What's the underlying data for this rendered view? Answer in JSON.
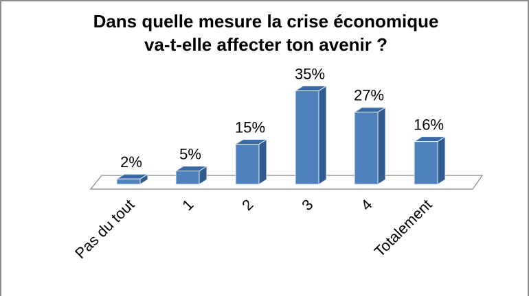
{
  "chart_data": {
    "type": "bar",
    "title_lines": [
      "Dans quelle mesure la crise économique",
      "va-t-elle affecter ton avenir ?"
    ],
    "categories": [
      "Pas du tout",
      "1",
      "2",
      "3",
      "4",
      "Totalement"
    ],
    "values": [
      2,
      5,
      15,
      35,
      27,
      16
    ],
    "value_labels": [
      "2%",
      "5%",
      "15%",
      "35%",
      "27%",
      "16%"
    ],
    "unit": "%",
    "style": "3d-column",
    "grid": false,
    "legend": "none",
    "colors": {
      "bar_front": "#4f81bd",
      "bar_side": "#2f5b8f",
      "bar_top": "#3a6aa6",
      "bar_edge": "#e9eef6",
      "floor_fill": "#ffffff",
      "floor_edge": "#9a9a9a",
      "frame": "#8c8c8c"
    }
  }
}
